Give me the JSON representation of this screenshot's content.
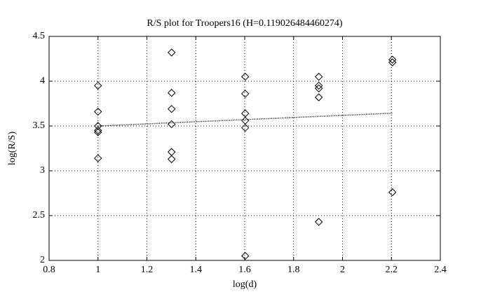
{
  "chart_data": {
    "type": "scatter",
    "title": "R/S plot for Troopers16 (H=0.119026484460274)",
    "x_label": "log(d)",
    "y_label": "log(R/S)",
    "xlim": [
      0.8,
      2.4
    ],
    "xticks": [
      0.8,
      1,
      1.2,
      1.4,
      1.6,
      1.8,
      2,
      2.2,
      2.4
    ],
    "ylim": [
      2,
      4.5
    ],
    "yticks": [
      2,
      2.5,
      3,
      3.5,
      4,
      4.5
    ],
    "grid": true,
    "series": [
      {
        "color": "#000000",
        "style": "diamond",
        "x": [
          1,
          1,
          1,
          1,
          1,
          1,
          1.301,
          1.301,
          1.301,
          1.301,
          1.301,
          1.301,
          1.602,
          1.602,
          1.602,
          1.602,
          1.602,
          1.602,
          1.903,
          1.903,
          1.903,
          1.903,
          1.903,
          2.204,
          2.204,
          2.204
        ],
        "values": [
          3.95,
          3.66,
          3.5,
          3.45,
          3.43,
          3.14,
          4.32,
          3.87,
          3.69,
          3.52,
          3.21,
          3.13,
          4.05,
          3.86,
          3.64,
          3.56,
          3.48,
          2.05,
          4.05,
          3.95,
          3.92,
          3.82,
          2.43,
          4.24,
          4.21,
          2.76
        ]
      },
      {
        "color": "#000000",
        "style": "dotted",
        "x": [
          1,
          2.204
        ],
        "values": [
          3.5,
          3.643
        ]
      }
    ]
  }
}
